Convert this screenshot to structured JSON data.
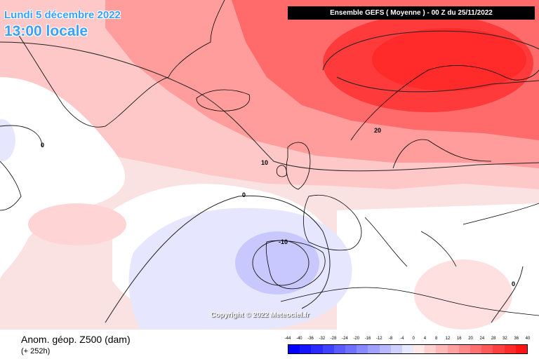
{
  "header": {
    "date": "Lundi 5 décembre 2022",
    "local_time": "13:00 locale",
    "model_info": "Ensemble GEFS  ( Moyenne )  - 00 Z du 25/11/2022"
  },
  "copyright": "Copyright © 2022 Meteociel.fr",
  "footer": {
    "field": "Anom. géop. Z500 (dam)",
    "lead": "(+ 252h)"
  },
  "contour_labels": [
    "20",
    "10",
    "0",
    "0",
    "-10",
    "0"
  ],
  "colors": {
    "strong_positive": "#ff3333",
    "positive": "#ff9999",
    "weak_positive": "#ffe0e0",
    "neutral": "#ffffff",
    "weak_negative": "#e4e4ff",
    "negative": "#c4c4ff"
  },
  "scale": {
    "labels": [
      "-44",
      "-40",
      "-36",
      "-32",
      "-28",
      "-24",
      "-20",
      "-16",
      "-12",
      "-8",
      "-4",
      "0",
      "4",
      "8",
      "12",
      "16",
      "20",
      "24",
      "28",
      "32",
      "36",
      "40"
    ],
    "colors": [
      "#0000ff",
      "#1414ff",
      "#2a2aff",
      "#4040ff",
      "#5a5aff",
      "#7070ff",
      "#8888ff",
      "#a0a0ff",
      "#b8b8ff",
      "#d0d0ff",
      "#e8e8ff",
      "#ffe8e8",
      "#ffd0d0",
      "#ffb8b8",
      "#ffa0a0",
      "#ff8888",
      "#ff7070",
      "#ff5a5a",
      "#ff4040",
      "#ff2a2a",
      "#ff1414"
    ]
  }
}
